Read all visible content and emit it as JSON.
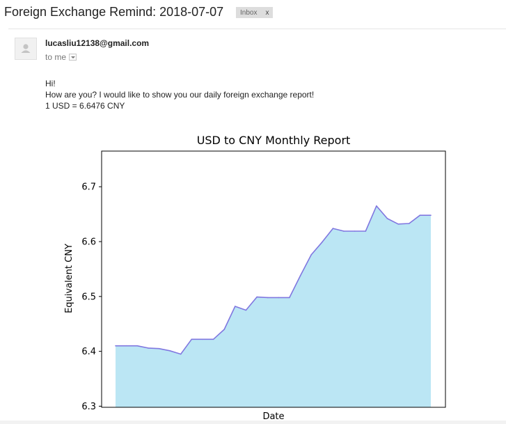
{
  "email": {
    "subject": "Foreign Exchange Remind: 2018-07-07",
    "label": "Inbox",
    "label_close": "x",
    "sender": "lucasliu12138@gmail.com",
    "recipient": "to me",
    "greeting": "Hi!",
    "line1": "How are you? I would like to show you our daily foreign exchange report!",
    "line2": "1 USD = 6.6476 CNY"
  },
  "icons": {
    "avatar": "default-avatar-icon",
    "details": "chevron-down-icon"
  },
  "chart_data": {
    "type": "area",
    "title": "USD to CNY Monthly Report",
    "xlabel": "Date",
    "ylabel": "Equivalent CNY",
    "y": [
      6.41,
      6.41,
      6.41,
      6.406,
      6.405,
      6.401,
      6.395,
      6.422,
      6.422,
      6.422,
      6.44,
      6.482,
      6.475,
      6.499,
      6.498,
      6.498,
      6.498,
      6.538,
      6.576,
      6.599,
      6.624,
      6.619,
      6.619,
      6.619,
      6.665,
      6.642,
      6.632,
      6.633,
      6.648,
      6.648
    ],
    "ylim": [
      6.298,
      6.765
    ],
    "yticks": [
      6.3,
      6.4,
      6.5,
      6.6,
      6.7
    ],
    "grid": false,
    "line_color": "#8077e0",
    "fill_color": "#bbe6f4"
  }
}
